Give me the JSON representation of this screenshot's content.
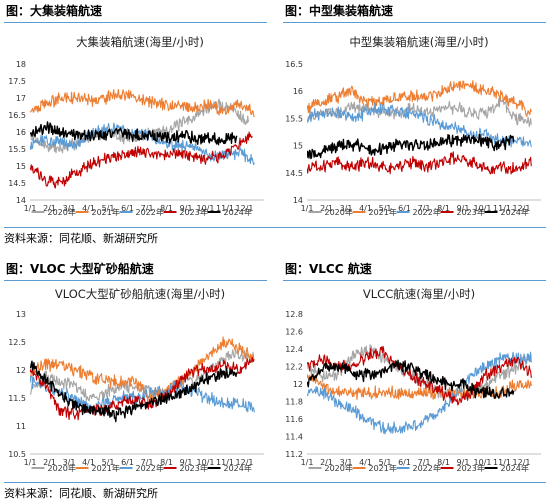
{
  "captions": {
    "c0": "图：大集装箱航速",
    "c1": "图：中型集装箱航速",
    "c2": "图：VLOC 大型矿砂船航速",
    "c3": "图：VLCC 航速"
  },
  "source": {
    "s0": "资料来源：同花顺、新湖研究所",
    "s1": "资料来源：同花顺、新湖研究所"
  },
  "colors": {
    "2020年": "#a5a5a5",
    "2021年": "#ed7d31",
    "2022年": "#5b9bd5",
    "2023年": "#c00000",
    "2024年": "#000000"
  },
  "chart_data": [
    {
      "type": "line",
      "title": "大集装箱航速(海里/小时)",
      "xlabel": "",
      "ylabel": "",
      "x_ticks": [
        "1/1",
        "2/1",
        "3/1",
        "4/1",
        "5/1",
        "6/1",
        "7/1",
        "8/1",
        "9/1",
        "10/1",
        "11/1",
        "12/1"
      ],
      "ylim": [
        14,
        18
      ],
      "y_ticks": [
        14,
        14.5,
        15,
        15.5,
        16,
        16.5,
        17,
        17.5,
        18
      ],
      "legend": "bottom",
      "grid": false,
      "series": [
        {
          "name": "2020年",
          "months": [
            1,
            12.2
          ],
          "values": [
            15.9,
            15.6,
            15.5,
            15.7,
            15.9,
            16.0,
            15.8,
            15.9,
            16.0,
            16.1,
            16.3,
            16.6,
            16.8,
            16.7,
            16.3
          ]
        },
        {
          "name": "2021年",
          "months": [
            1,
            12.5
          ],
          "values": [
            16.6,
            16.8,
            17.0,
            17.0,
            16.9,
            17.0,
            17.1,
            17.0,
            16.9,
            16.8,
            16.8,
            16.7,
            16.8,
            16.6,
            16.9,
            16.5
          ]
        },
        {
          "name": "2022年",
          "months": [
            1,
            12.5
          ],
          "values": [
            15.6,
            15.8,
            15.7,
            15.6,
            15.9,
            16.1,
            16.1,
            16.0,
            15.9,
            15.7,
            15.6,
            15.5,
            15.3,
            15.3,
            15.4,
            15.1
          ]
        },
        {
          "name": "2023年",
          "months": [
            1,
            12.4
          ],
          "values": [
            14.9,
            14.6,
            14.5,
            14.8,
            15.0,
            15.2,
            15.3,
            15.4,
            15.4,
            15.3,
            15.4,
            15.3,
            15.2,
            15.3,
            15.6,
            15.9
          ]
        },
        {
          "name": "2024年",
          "months": [
            1,
            11.6
          ],
          "values": [
            16.0,
            16.1,
            16.0,
            15.9,
            15.9,
            16.0,
            15.9,
            15.9,
            15.8,
            15.9,
            15.8,
            15.8,
            15.8
          ]
        }
      ]
    },
    {
      "type": "line",
      "title": "中型集装箱航速(海里/小时)",
      "xlabel": "",
      "ylabel": "",
      "x_ticks": [
        "1/1",
        "2/1",
        "3/1",
        "4/1",
        "5/1",
        "6/1",
        "7/1",
        "8/1",
        "9/1",
        "10/1",
        "11/1",
        "12/1"
      ],
      "ylim": [
        14,
        16.5
      ],
      "y_ticks": [
        14,
        14.5,
        15,
        15.5,
        16,
        16.5
      ],
      "legend": "bottom",
      "grid": false,
      "series": [
        {
          "name": "2020年",
          "months": [
            1,
            12.5
          ],
          "values": [
            15.5,
            15.6,
            15.6,
            15.7,
            15.7,
            15.6,
            15.6,
            15.7,
            15.6,
            15.7,
            15.7,
            15.6,
            15.6,
            15.8,
            15.5,
            15.4
          ]
        },
        {
          "name": "2021年",
          "months": [
            1,
            12.5
          ],
          "values": [
            15.7,
            15.8,
            15.9,
            16.0,
            15.8,
            15.8,
            15.9,
            15.9,
            15.9,
            16.0,
            16.1,
            16.1,
            16.0,
            15.9,
            15.8,
            15.6
          ]
        },
        {
          "name": "2022年",
          "months": [
            1,
            12.5
          ],
          "values": [
            15.5,
            15.6,
            15.6,
            15.5,
            15.6,
            15.7,
            15.6,
            15.6,
            15.5,
            15.4,
            15.3,
            15.2,
            15.2,
            15.1,
            15.1,
            15.0
          ]
        },
        {
          "name": "2023年",
          "months": [
            1,
            12.5
          ],
          "values": [
            14.6,
            14.6,
            14.7,
            14.6,
            14.7,
            14.6,
            14.6,
            14.7,
            14.6,
            14.7,
            14.8,
            14.7,
            14.6,
            14.6,
            14.6,
            14.7
          ]
        },
        {
          "name": "2024年",
          "months": [
            1,
            11.6
          ],
          "values": [
            14.8,
            14.9,
            15.0,
            15.0,
            14.9,
            15.0,
            15.0,
            15.0,
            15.1,
            15.1,
            15.1,
            15.0,
            15.1
          ]
        }
      ]
    },
    {
      "type": "line",
      "title": "VLOC大型矿砂船航速(海里/小时)",
      "xlabel": "",
      "ylabel": "",
      "x_ticks": [
        "1/1",
        "2/1",
        "3/1",
        "4/1",
        "5/1",
        "6/1",
        "7/1",
        "8/1",
        "9/1",
        "10/1",
        "11/1",
        "12/1"
      ],
      "ylim": [
        10.5,
        13
      ],
      "y_ticks": [
        10.5,
        11,
        11.5,
        12,
        12.5,
        13
      ],
      "legend": "bottom",
      "grid": false,
      "series": [
        {
          "name": "2020年",
          "months": [
            1,
            12.5
          ],
          "values": [
            11.6,
            11.9,
            11.8,
            11.7,
            11.5,
            11.6,
            11.7,
            11.7,
            11.6,
            11.6,
            11.8,
            11.8,
            12.0,
            12.2,
            12.3,
            12.2
          ]
        },
        {
          "name": "2021年",
          "months": [
            1,
            12.5
          ],
          "values": [
            11.9,
            12.1,
            12.1,
            12.0,
            11.9,
            11.8,
            11.8,
            11.8,
            11.5,
            11.6,
            11.8,
            12.0,
            12.3,
            12.5,
            12.4,
            12.2
          ]
        },
        {
          "name": "2022年",
          "months": [
            1,
            12.5
          ],
          "values": [
            11.8,
            11.7,
            11.6,
            11.5,
            11.3,
            11.4,
            11.5,
            11.5,
            11.6,
            11.6,
            11.7,
            11.6,
            11.5,
            11.4,
            11.4,
            11.3
          ]
        },
        {
          "name": "2023年",
          "months": [
            1,
            12.5
          ],
          "values": [
            12.0,
            11.7,
            11.3,
            11.2,
            11.3,
            11.3,
            11.4,
            11.5,
            11.4,
            11.5,
            11.8,
            12.0,
            12.0,
            12.1,
            12.0,
            12.2
          ]
        },
        {
          "name": "2024年",
          "months": [
            1,
            11.6
          ],
          "values": [
            12.1,
            11.8,
            11.5,
            11.3,
            11.3,
            11.2,
            11.3,
            11.4,
            11.5,
            11.6,
            11.8,
            11.9,
            12.0
          ]
        }
      ]
    },
    {
      "type": "line",
      "title": "VLCC航速(海里/小时)",
      "xlabel": "",
      "ylabel": "",
      "x_ticks": [
        "1/1",
        "2/1",
        "3/1",
        "4/1",
        "5/1",
        "6/1",
        "7/1",
        "8/1",
        "9/1",
        "10/1",
        "11/1",
        "12/1"
      ],
      "ylim": [
        11.2,
        12.8
      ],
      "y_ticks": [
        11.2,
        11.4,
        11.6,
        11.8,
        12,
        12.2,
        12.4,
        12.6,
        12.8
      ],
      "legend": "bottom",
      "grid": false,
      "series": [
        {
          "name": "2020年",
          "months": [
            1,
            12.5
          ],
          "values": [
            12.2,
            12.1,
            12.1,
            12.3,
            12.4,
            12.3,
            12.2,
            12.1,
            12.0,
            11.9,
            11.9,
            11.9,
            12.0,
            12.1,
            12.2,
            12.3
          ]
        },
        {
          "name": "2021年",
          "months": [
            1,
            12.5
          ],
          "values": [
            12.1,
            12.0,
            11.9,
            11.9,
            11.9,
            11.9,
            11.9,
            11.9,
            11.9,
            11.9,
            11.9,
            11.9,
            11.9,
            11.9,
            12.0,
            12.0
          ]
        },
        {
          "name": "2022年",
          "months": [
            1,
            12.5
          ],
          "values": [
            11.9,
            11.9,
            11.8,
            11.7,
            11.6,
            11.5,
            11.5,
            11.5,
            11.6,
            11.7,
            11.9,
            12.1,
            12.2,
            12.3,
            12.3,
            12.3
          ]
        },
        {
          "name": "2023年",
          "months": [
            1,
            12.5
          ],
          "values": [
            12.2,
            12.3,
            12.2,
            12.2,
            12.3,
            12.4,
            12.2,
            12.1,
            12.0,
            11.9,
            11.8,
            11.9,
            12.1,
            12.2,
            12.3,
            12.1
          ]
        },
        {
          "name": "2024年",
          "months": [
            1,
            11.6
          ],
          "values": [
            12.0,
            12.2,
            12.2,
            12.1,
            12.1,
            12.2,
            12.2,
            12.1,
            12.0,
            12.0,
            11.9,
            11.9,
            11.9
          ]
        }
      ]
    }
  ]
}
